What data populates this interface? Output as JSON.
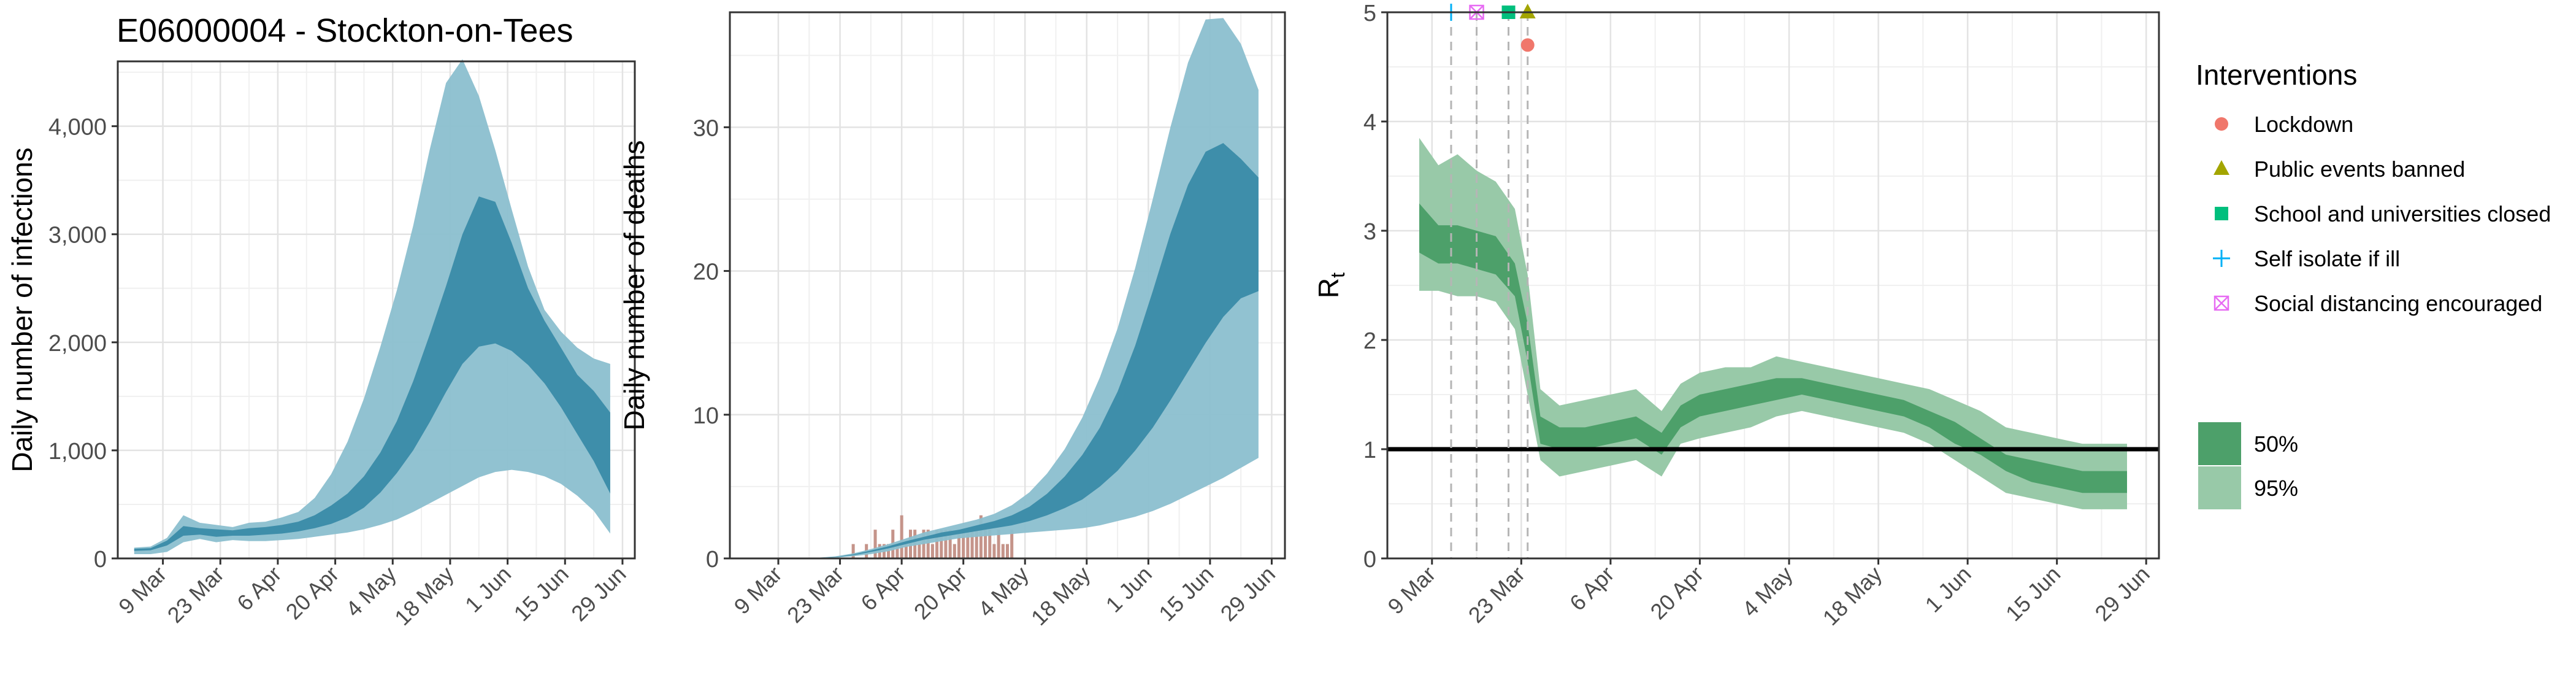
{
  "figure_title": "E06000004 - Stockton-on-Tees",
  "colors": {
    "infections_95": "#8bbfcf",
    "infections_50": "#3a8ba8",
    "deaths_bar": "#c5948a",
    "rt_95": "#98c9a8",
    "rt_50": "#4da06a",
    "lockdown": "#f0776b",
    "public_events": "#a3a500",
    "school": "#00bf7d",
    "self_isolate": "#00b0f6",
    "social_distancing": "#e76bf3"
  },
  "chart_data": [
    {
      "type": "area",
      "name": "infections",
      "title": "",
      "ylabel": "Daily number of infections",
      "xlabel": "",
      "ylim": [
        0,
        4600
      ],
      "y_ticks": [
        0,
        1000,
        2000,
        3000,
        4000
      ],
      "y_tick_labels": [
        "0",
        "1,000",
        "2,000",
        "3,000",
        "4,000"
      ],
      "x_tick_labels": [
        "9 Mar",
        "23 Mar",
        "6 Apr",
        "20 Apr",
        "4 May",
        "18 May",
        "1 Jun",
        "15 Jun",
        "29 Jun"
      ],
      "x_ticks": [
        "2020-03-09",
        "2020-03-23",
        "2020-04-06",
        "2020-04-20",
        "2020-05-04",
        "2020-05-18",
        "2020-06-01",
        "2020-06-15",
        "2020-06-29"
      ],
      "xlim": [
        "2020-02-27",
        "2020-07-02"
      ],
      "dates": [
        "2020-03-02",
        "2020-03-06",
        "2020-03-10",
        "2020-03-14",
        "2020-03-18",
        "2020-03-22",
        "2020-03-26",
        "2020-03-30",
        "2020-04-03",
        "2020-04-07",
        "2020-04-11",
        "2020-04-15",
        "2020-04-19",
        "2020-04-23",
        "2020-04-27",
        "2020-05-01",
        "2020-05-05",
        "2020-05-09",
        "2020-05-13",
        "2020-05-17",
        "2020-05-21",
        "2020-05-25",
        "2020-05-29",
        "2020-06-02",
        "2020-06-06",
        "2020-06-10",
        "2020-06-14",
        "2020-06-18",
        "2020-06-22",
        "2020-06-26"
      ],
      "ci95_low": [
        40,
        40,
        60,
        150,
        180,
        150,
        170,
        160,
        160,
        170,
        180,
        200,
        220,
        240,
        270,
        310,
        360,
        430,
        510,
        590,
        670,
        750,
        800,
        820,
        800,
        760,
        690,
        580,
        440,
        230
      ],
      "ci95_high": [
        100,
        110,
        190,
        400,
        330,
        310,
        290,
        330,
        340,
        380,
        430,
        560,
        780,
        1080,
        1480,
        1960,
        2480,
        3080,
        3780,
        4400,
        4620,
        4280,
        3780,
        3230,
        2700,
        2300,
        2100,
        1950,
        1850,
        1800
      ],
      "ci50_low": [
        70,
        75,
        120,
        210,
        220,
        200,
        210,
        210,
        220,
        230,
        250,
        280,
        320,
        380,
        470,
        610,
        790,
        1000,
        1260,
        1540,
        1800,
        1960,
        1990,
        1920,
        1790,
        1620,
        1400,
        1150,
        900,
        600
      ],
      "ci50_high": [
        90,
        95,
        165,
        300,
        280,
        270,
        260,
        280,
        290,
        310,
        340,
        400,
        490,
        600,
        760,
        980,
        1270,
        1640,
        2070,
        2520,
        3000,
        3350,
        3300,
        2920,
        2500,
        2200,
        1950,
        1700,
        1550,
        1350
      ]
    },
    {
      "type": "area",
      "name": "deaths",
      "title": "",
      "ylabel": "Daily number of deaths",
      "xlabel": "",
      "ylim": [
        0,
        38
      ],
      "y_ticks": [
        0,
        10,
        20,
        30
      ],
      "y_tick_labels": [
        "0",
        "10",
        "20",
        "30"
      ],
      "x_tick_labels": [
        "9 Mar",
        "23 Mar",
        "6 Apr",
        "20 Apr",
        "4 May",
        "18 May",
        "1 Jun",
        "15 Jun",
        "29 Jun"
      ],
      "x_ticks": [
        "2020-03-09",
        "2020-03-23",
        "2020-04-06",
        "2020-04-20",
        "2020-05-04",
        "2020-05-18",
        "2020-06-01",
        "2020-06-15",
        "2020-06-29"
      ],
      "xlim": [
        "2020-02-27",
        "2020-07-02"
      ],
      "dates": [
        "2020-03-02",
        "2020-03-06",
        "2020-03-10",
        "2020-03-14",
        "2020-03-18",
        "2020-03-22",
        "2020-03-26",
        "2020-03-30",
        "2020-04-03",
        "2020-04-07",
        "2020-04-11",
        "2020-04-15",
        "2020-04-19",
        "2020-04-23",
        "2020-04-27",
        "2020-05-01",
        "2020-05-05",
        "2020-05-09",
        "2020-05-13",
        "2020-05-17",
        "2020-05-21",
        "2020-05-25",
        "2020-05-29",
        "2020-06-02",
        "2020-06-06",
        "2020-06-10",
        "2020-06-14",
        "2020-06-18",
        "2020-06-22",
        "2020-06-26"
      ],
      "ci95_low": [
        0,
        0,
        0,
        0,
        0.02,
        0.05,
        0.15,
        0.3,
        0.5,
        0.8,
        1.0,
        1.2,
        1.4,
        1.5,
        1.6,
        1.7,
        1.8,
        1.9,
        2.0,
        2.1,
        2.3,
        2.6,
        2.9,
        3.3,
        3.8,
        4.4,
        5.0,
        5.6,
        6.3,
        7.0
      ],
      "ci95_high": [
        0,
        0,
        0,
        0,
        0.05,
        0.15,
        0.35,
        0.65,
        1.0,
        1.4,
        1.8,
        2.1,
        2.4,
        2.7,
        3.1,
        3.7,
        4.6,
        5.9,
        7.6,
        9.8,
        12.6,
        16.0,
        20.2,
        25.0,
        30.0,
        34.5,
        37.5,
        37.6,
        35.8,
        32.6
      ],
      "ci50_low": [
        0,
        0,
        0,
        0,
        0.03,
        0.08,
        0.22,
        0.45,
        0.7,
        1.0,
        1.3,
        1.5,
        1.7,
        1.9,
        2.1,
        2.3,
        2.6,
        3.0,
        3.5,
        4.1,
        5.0,
        6.1,
        7.5,
        9.1,
        11.0,
        13.0,
        15.0,
        16.8,
        18.1,
        18.6
      ],
      "ci50_high": [
        0,
        0,
        0,
        0,
        0.04,
        0.1,
        0.28,
        0.55,
        0.85,
        1.2,
        1.5,
        1.8,
        2.0,
        2.3,
        2.6,
        3.0,
        3.6,
        4.5,
        5.7,
        7.2,
        9.1,
        11.6,
        14.8,
        18.6,
        22.6,
        26.0,
        28.3,
        28.9,
        27.8,
        26.5
      ],
      "bars": {
        "dates": [
          "2020-03-26",
          "2020-03-29",
          "2020-03-31",
          "2020-04-01",
          "2020-04-02",
          "2020-04-03",
          "2020-04-04",
          "2020-04-05",
          "2020-04-06",
          "2020-04-07",
          "2020-04-08",
          "2020-04-09",
          "2020-04-10",
          "2020-04-11",
          "2020-04-12",
          "2020-04-13",
          "2020-04-14",
          "2020-04-15",
          "2020-04-16",
          "2020-04-17",
          "2020-04-18",
          "2020-04-19",
          "2020-04-20",
          "2020-04-21",
          "2020-04-22",
          "2020-04-23",
          "2020-04-24",
          "2020-04-25",
          "2020-04-26",
          "2020-04-27",
          "2020-04-28",
          "2020-04-29",
          "2020-04-30",
          "2020-05-01"
        ],
        "values": [
          1,
          1,
          2,
          1,
          1,
          1,
          2,
          1,
          3,
          1,
          2,
          2,
          1,
          2,
          2,
          1,
          2,
          2,
          2,
          2,
          1,
          2,
          2,
          2,
          2,
          2,
          3,
          2,
          2,
          1,
          2,
          1,
          1,
          2
        ]
      }
    },
    {
      "type": "area",
      "name": "rt",
      "title": "",
      "ylabel": "R",
      "ylabel_subscript": "t",
      "xlabel": "",
      "ylim": [
        0,
        5
      ],
      "y_ticks": [
        0,
        1,
        2,
        3,
        4,
        5
      ],
      "y_tick_labels": [
        "0",
        "1",
        "2",
        "3",
        "4",
        "5"
      ],
      "x_tick_labels": [
        "9 Mar",
        "23 Mar",
        "6 Apr",
        "20 Apr",
        "4 May",
        "18 May",
        "1 Jun",
        "15 Jun",
        "29 Jun"
      ],
      "x_ticks": [
        "2020-03-09",
        "2020-03-23",
        "2020-04-06",
        "2020-04-20",
        "2020-05-04",
        "2020-05-18",
        "2020-06-01",
        "2020-06-15",
        "2020-06-29"
      ],
      "xlim": [
        "2020-03-02",
        "2020-07-01"
      ],
      "reference_line": 1,
      "dates": [
        "2020-03-07",
        "2020-03-10",
        "2020-03-13",
        "2020-03-16",
        "2020-03-19",
        "2020-03-22",
        "2020-03-24",
        "2020-03-26",
        "2020-03-29",
        "2020-04-02",
        "2020-04-06",
        "2020-04-10",
        "2020-04-14",
        "2020-04-17",
        "2020-04-20",
        "2020-04-24",
        "2020-04-28",
        "2020-05-02",
        "2020-05-06",
        "2020-05-10",
        "2020-05-14",
        "2020-05-18",
        "2020-05-22",
        "2020-05-26",
        "2020-05-30",
        "2020-06-03",
        "2020-06-07",
        "2020-06-11",
        "2020-06-15",
        "2020-06-19",
        "2020-06-23",
        "2020-06-26"
      ],
      "ci95_low": [
        2.45,
        2.45,
        2.4,
        2.4,
        2.35,
        2.1,
        1.5,
        0.9,
        0.75,
        0.8,
        0.85,
        0.9,
        0.75,
        1.05,
        1.1,
        1.15,
        1.2,
        1.3,
        1.35,
        1.3,
        1.25,
        1.2,
        1.15,
        1.05,
        0.9,
        0.75,
        0.6,
        0.55,
        0.5,
        0.45,
        0.45,
        0.45
      ],
      "ci95_high": [
        3.85,
        3.6,
        3.7,
        3.55,
        3.45,
        3.2,
        2.6,
        1.55,
        1.4,
        1.45,
        1.5,
        1.55,
        1.35,
        1.6,
        1.7,
        1.75,
        1.75,
        1.85,
        1.8,
        1.75,
        1.7,
        1.65,
        1.6,
        1.55,
        1.45,
        1.35,
        1.2,
        1.15,
        1.1,
        1.05,
        1.05,
        1.05
      ],
      "ci50_low": [
        2.8,
        2.7,
        2.7,
        2.65,
        2.6,
        2.4,
        1.8,
        1.05,
        1.0,
        1.0,
        1.05,
        1.1,
        0.95,
        1.2,
        1.3,
        1.35,
        1.4,
        1.45,
        1.5,
        1.45,
        1.4,
        1.35,
        1.3,
        1.2,
        1.05,
        0.95,
        0.8,
        0.7,
        0.65,
        0.6,
        0.6,
        0.6
      ],
      "ci50_high": [
        3.25,
        3.05,
        3.05,
        3.0,
        2.95,
        2.7,
        2.15,
        1.3,
        1.2,
        1.2,
        1.25,
        1.3,
        1.15,
        1.4,
        1.5,
        1.55,
        1.6,
        1.65,
        1.65,
        1.6,
        1.55,
        1.5,
        1.45,
        1.35,
        1.25,
        1.1,
        0.95,
        0.9,
        0.85,
        0.8,
        0.8,
        0.8
      ],
      "interventions": [
        {
          "name": "Self isolate if ill",
          "date": "2020-03-12",
          "y": 5.0,
          "shape": "plus"
        },
        {
          "name": "Social distancing encouraged",
          "date": "2020-03-16",
          "y": 5.0,
          "shape": "boxx"
        },
        {
          "name": "School and universities closed",
          "date": "2020-03-21",
          "y": 5.0,
          "shape": "square"
        },
        {
          "name": "Public events banned",
          "date": "2020-03-24",
          "y": 5.0,
          "shape": "triangle"
        },
        {
          "name": "Lockdown",
          "date": "2020-03-24",
          "y": 4.7,
          "shape": "circle"
        }
      ]
    }
  ],
  "legend": {
    "title": "Interventions",
    "position": "right",
    "items": [
      {
        "label": "Lockdown",
        "shape": "circle",
        "color_key": "lockdown"
      },
      {
        "label": "Public events banned",
        "shape": "triangle",
        "color_key": "public_events"
      },
      {
        "label": "School and universities closed",
        "shape": "square",
        "color_key": "school"
      },
      {
        "label": "Self isolate if ill",
        "shape": "plus",
        "color_key": "self_isolate"
      },
      {
        "label": "Social distancing encouraged",
        "shape": "boxx",
        "color_key": "social_distancing"
      }
    ],
    "ci_items": [
      {
        "label": "50%",
        "color_key": "rt_50"
      },
      {
        "label": "95%",
        "color_key": "rt_95"
      }
    ]
  }
}
